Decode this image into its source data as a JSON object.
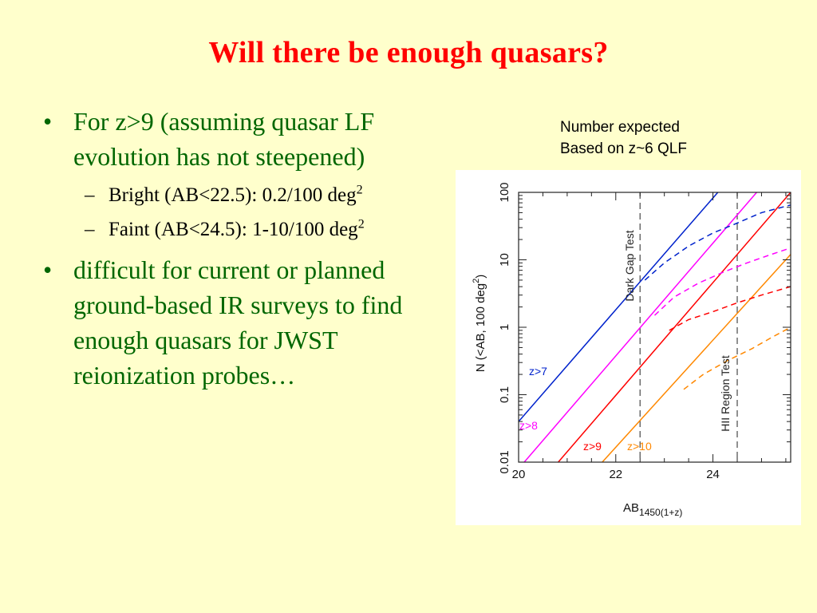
{
  "title": "Will there be enough quasars?",
  "bullets": {
    "b1": "For z>9 (assuming quasar LF evolution has not steepened)",
    "sub1_text": "Bright (AB<22.5): 0.2/100 deg",
    "sub1_sup": "2",
    "sub2_text": "Faint (AB<24.5): 1-10/100 deg",
    "sub2_sup": "2",
    "b2": "difficult for current or planned ground-based IR surveys to find enough quasars for JWST reionization probes…",
    "bullet_symbol": "•",
    "dash_symbol": "–"
  },
  "caption": {
    "line1": "Number expected",
    "line2": "Based on z~6 QLF"
  },
  "colors": {
    "title": "#ff0000",
    "bullet_text": "#006600",
    "background": "#ffffcc",
    "z7": "#0022cc",
    "z8": "#ff00ff",
    "z9": "#ff0000",
    "z10": "#ff8800"
  },
  "chart_data": {
    "type": "line",
    "xlabel": "AB",
    "xlabel_sub": "1450(1+z)",
    "ylabel": "N (<AB, 100 deg",
    "ylabel_sup": "2",
    "ylabel_end": ")",
    "xlim": [
      20,
      25.6
    ],
    "ylim": [
      0.01,
      100
    ],
    "yscale": "log",
    "xticks": [
      20,
      22,
      24
    ],
    "yticks": [
      0.01,
      0.1,
      1,
      10,
      100
    ],
    "yticklabels": [
      "0.01",
      "0.1",
      "1",
      "10",
      "100"
    ],
    "vlines": [
      {
        "x": 22.5,
        "label": "Dark Gap Test"
      },
      {
        "x": 24.5,
        "label": "HII Region Test"
      }
    ],
    "series": [
      {
        "name": "z>7",
        "color": "#0022cc",
        "style": "solid",
        "x": [
          20,
          24.1
        ],
        "y": [
          0.04,
          100
        ]
      },
      {
        "name": "z>8",
        "color": "#ff00ff",
        "style": "solid",
        "x": [
          20,
          24.9
        ],
        "y": [
          0.008,
          100
        ]
      },
      {
        "name": "z>9",
        "color": "#ff0000",
        "style": "solid",
        "x": [
          20.7,
          25.6
        ],
        "y": [
          0.008,
          100
        ]
      },
      {
        "name": "z>10",
        "color": "#ff8800",
        "style": "solid",
        "x": [
          21.6,
          25.6
        ],
        "y": [
          0.008,
          12
        ]
      },
      {
        "name": "z>7",
        "color": "#0022cc",
        "style": "dashed",
        "x": [
          22.6,
          23.0,
          23.5,
          24.0,
          24.5,
          25.0,
          25.6
        ],
        "y": [
          5,
          9,
          16,
          25,
          35,
          50,
          65
        ]
      },
      {
        "name": "z>8",
        "color": "#ff00ff",
        "style": "dashed",
        "x": [
          22.8,
          23.2,
          23.7,
          24.2,
          24.7,
          25.2,
          25.6
        ],
        "y": [
          1.5,
          2.8,
          4.5,
          6.5,
          9,
          12,
          15
        ]
      },
      {
        "name": "z>9",
        "color": "#ff0000",
        "style": "dashed",
        "x": [
          23.1,
          23.5,
          24.0,
          24.5,
          25.0,
          25.6
        ],
        "y": [
          0.9,
          1.3,
          1.7,
          2.3,
          3.0,
          4.0
        ]
      },
      {
        "name": "z>10",
        "color": "#ff8800",
        "style": "dashed",
        "x": [
          23.4,
          23.8,
          24.3,
          24.8,
          25.2,
          25.6
        ],
        "y": [
          0.12,
          0.2,
          0.32,
          0.48,
          0.7,
          1.0
        ]
      }
    ],
    "series_labels": [
      {
        "text": "z>7",
        "color": "#0022cc"
      },
      {
        "text": "z>8",
        "color": "#ff00ff"
      },
      {
        "text": "z>9",
        "color": "#ff0000"
      },
      {
        "text": "z>10",
        "color": "#ff8800"
      }
    ]
  }
}
